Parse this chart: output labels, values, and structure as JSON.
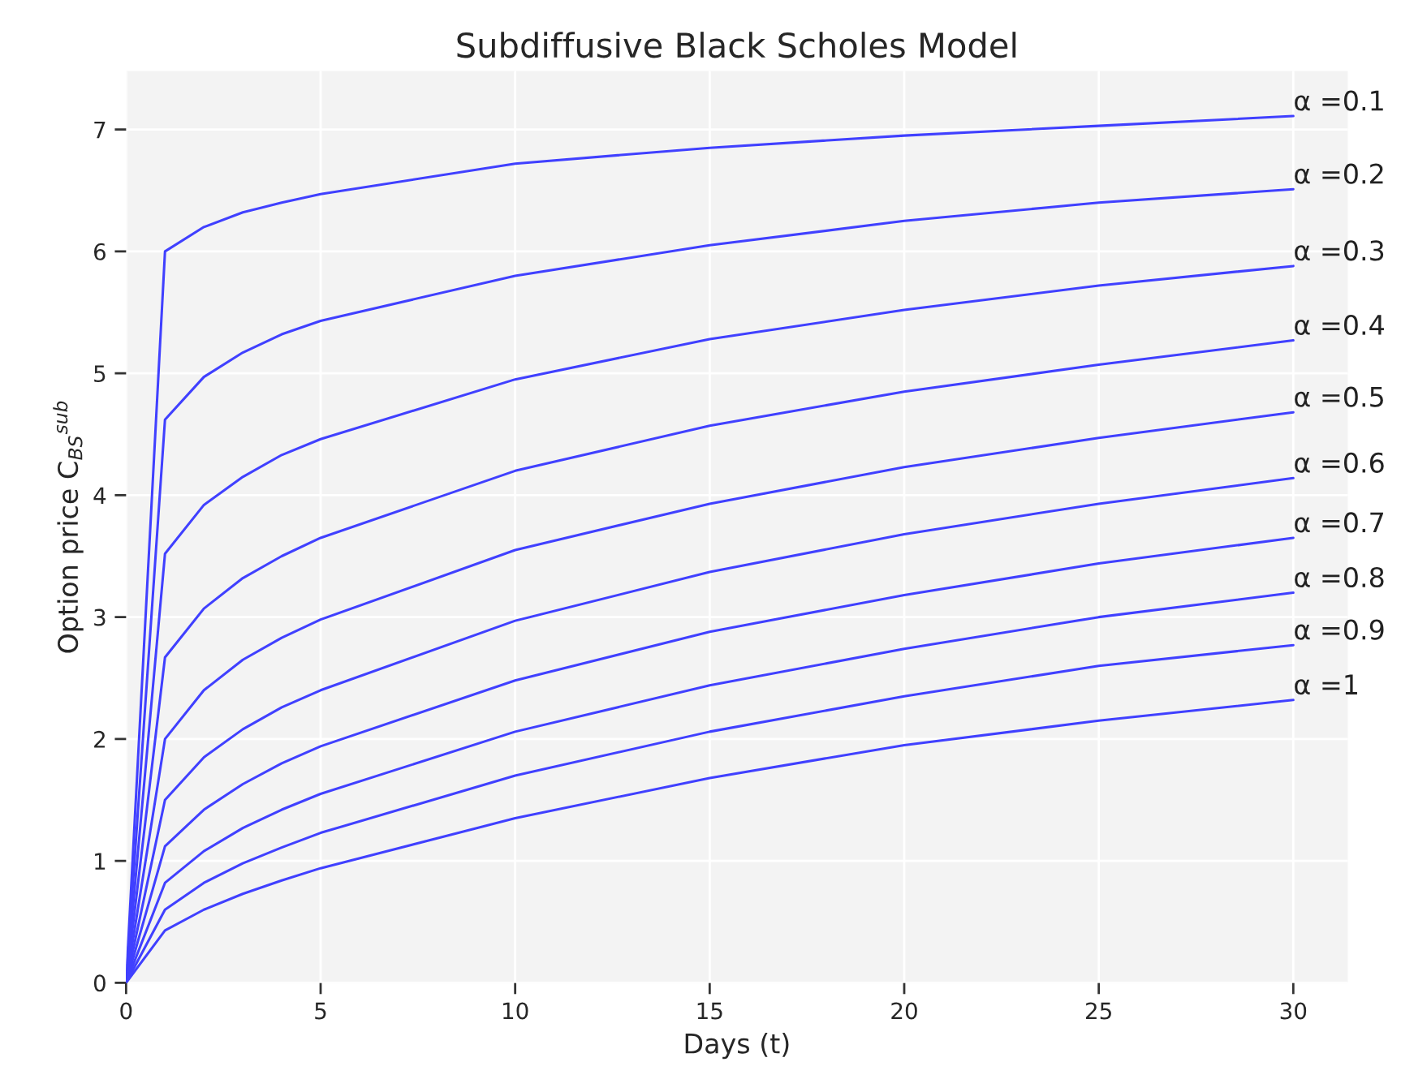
{
  "chart_data": {
    "type": "line",
    "title": "Subdiffusive Black Scholes Model",
    "xlabel": "Days (t)",
    "ylabel": "Option price C$_{BS}$$^{sub}$",
    "x": [
      0,
      1,
      2,
      3,
      4,
      5,
      10,
      15,
      20,
      25,
      30
    ],
    "series": [
      {
        "name": "α =0.1",
        "color": "#4040ff",
        "values": [
          0,
          6.0,
          6.2,
          6.32,
          6.4,
          6.47,
          6.72,
          6.85,
          6.95,
          7.03,
          7.11
        ]
      },
      {
        "name": "α =0.2",
        "color": "#4040ff",
        "values": [
          0,
          4.62,
          4.97,
          5.17,
          5.32,
          5.43,
          5.8,
          6.05,
          6.25,
          6.4,
          6.51
        ]
      },
      {
        "name": "α =0.3",
        "color": "#4040ff",
        "values": [
          0,
          3.52,
          3.92,
          4.15,
          4.33,
          4.46,
          4.95,
          5.28,
          5.52,
          5.72,
          5.88
        ]
      },
      {
        "name": "α =0.4",
        "color": "#4040ff",
        "values": [
          0,
          2.67,
          3.07,
          3.32,
          3.5,
          3.65,
          4.2,
          4.57,
          4.85,
          5.07,
          5.27
        ]
      },
      {
        "name": "α =0.5",
        "color": "#4040ff",
        "values": [
          0,
          2.0,
          2.4,
          2.65,
          2.83,
          2.98,
          3.55,
          3.93,
          4.23,
          4.47,
          4.68
        ]
      },
      {
        "name": "α =0.6",
        "color": "#4040ff",
        "values": [
          0,
          1.5,
          1.85,
          2.08,
          2.26,
          2.4,
          2.97,
          3.37,
          3.68,
          3.93,
          4.14
        ]
      },
      {
        "name": "α =0.7",
        "color": "#4040ff",
        "values": [
          0,
          1.12,
          1.42,
          1.63,
          1.8,
          1.94,
          2.48,
          2.88,
          3.18,
          3.44,
          3.65
        ]
      },
      {
        "name": "α =0.8",
        "color": "#4040ff",
        "values": [
          0,
          0.82,
          1.08,
          1.27,
          1.42,
          1.55,
          2.06,
          2.44,
          2.74,
          3.0,
          3.2
        ]
      },
      {
        "name": "α =0.9",
        "color": "#4040ff",
        "values": [
          0,
          0.6,
          0.82,
          0.98,
          1.11,
          1.23,
          1.7,
          2.06,
          2.35,
          2.6,
          2.77
        ]
      },
      {
        "name": "α =1",
        "color": "#4040ff",
        "values": [
          0,
          0.43,
          0.6,
          0.73,
          0.84,
          0.94,
          1.35,
          1.68,
          1.95,
          2.15,
          2.32
        ]
      }
    ],
    "xlim": [
      0,
      31.4
    ],
    "ylim": [
      0,
      7.48
    ],
    "xticks": [
      0,
      5,
      10,
      15,
      20,
      25,
      30
    ],
    "yticks": [
      0,
      1,
      2,
      3,
      4,
      5,
      6,
      7
    ],
    "grid": true,
    "legend": false,
    "marker": "none",
    "line_style": "solid"
  }
}
